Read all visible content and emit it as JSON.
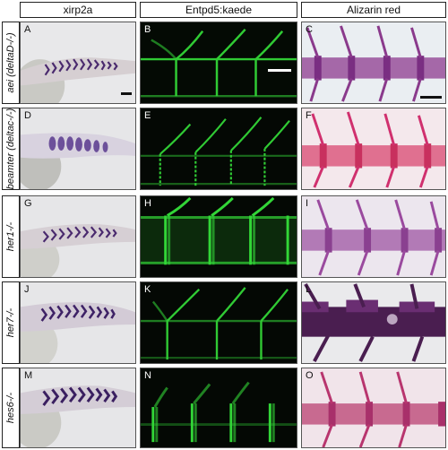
{
  "columns": [
    {
      "title": "xirp2a"
    },
    {
      "title": "Entpd5:kaede"
    },
    {
      "title": "Alizarin red"
    }
  ],
  "rows": [
    {
      "label": "aei (deltaD-/-)",
      "panels": [
        "A",
        "B",
        "C"
      ]
    },
    {
      "label": "beamter (deltac-/-)",
      "panels": [
        "D",
        "E",
        "F"
      ]
    },
    {
      "label": "her1-/-",
      "panels": [
        "G",
        "H",
        "I"
      ]
    },
    {
      "label": "her7-/-",
      "panels": [
        "J",
        "K",
        "L"
      ]
    },
    {
      "label": "hes6-/-",
      "panels": [
        "M",
        "N",
        "O"
      ]
    }
  ],
  "colors": {
    "stain_purple": "#4a2a6e",
    "kaede_green": "#35e03a",
    "alizarin_purple": "#8a3a8c",
    "alizarin_pink": "#d0306e"
  }
}
